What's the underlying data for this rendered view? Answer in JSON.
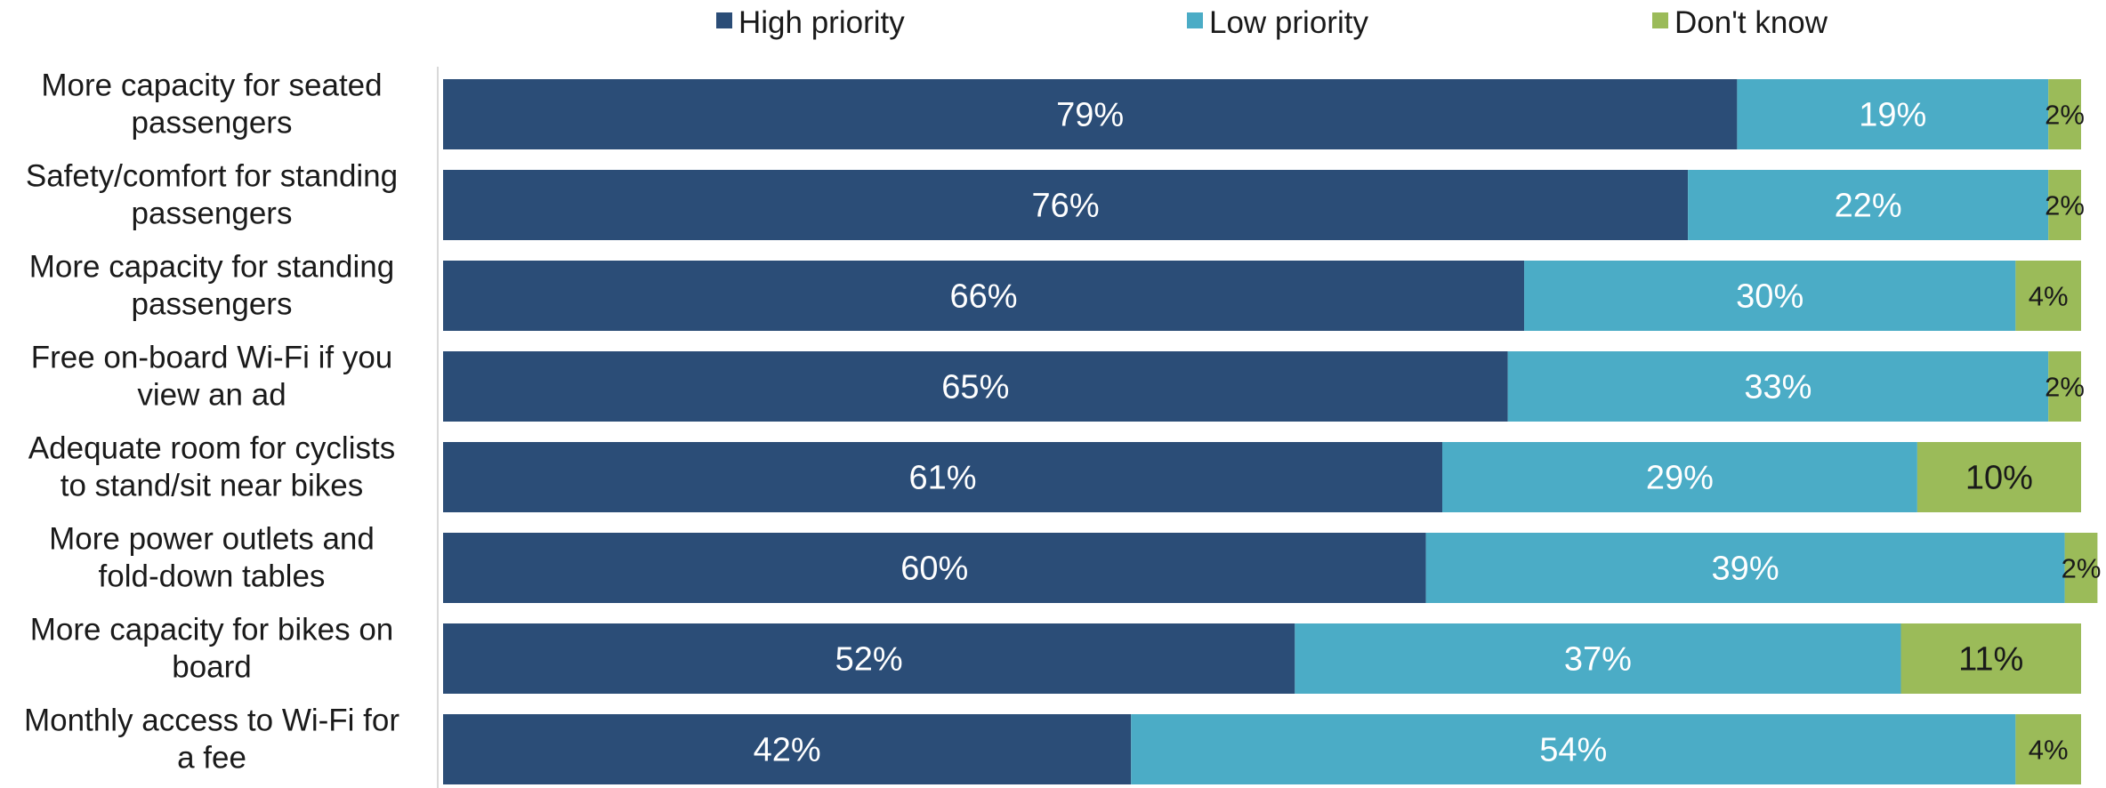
{
  "chart_data": {
    "type": "bar",
    "orientation": "horizontal",
    "stacked": true,
    "title": "",
    "xlabel": "",
    "ylabel": "",
    "xlim": [
      0,
      100
    ],
    "grid": false,
    "legend_position": "top",
    "categories": [
      [
        "More capacity for seated",
        "passengers"
      ],
      [
        "Safety/comfort for standing",
        "passengers"
      ],
      [
        "More capacity for standing",
        "passengers"
      ],
      [
        "Free on-board Wi-Fi if you",
        "view an ad"
      ],
      [
        "Adequate room for cyclists",
        "to stand/sit near bikes"
      ],
      [
        "More power outlets and",
        "fold-down tables"
      ],
      [
        "More capacity for bikes on",
        "board"
      ],
      [
        "Monthly access to Wi-Fi for",
        "a fee"
      ]
    ],
    "series": [
      {
        "name": "High priority",
        "color": "#2b4d77",
        "label_color": "#ffffff",
        "values": [
          79,
          76,
          66,
          65,
          61,
          60,
          52,
          42
        ]
      },
      {
        "name": "Low priority",
        "color": "#4bacc6",
        "label_color": "#ffffff",
        "values": [
          19,
          22,
          30,
          33,
          29,
          39,
          37,
          54
        ]
      },
      {
        "name": "Don't know",
        "color": "#9bbb59",
        "label_color": "#1a1a1a",
        "values": [
          2,
          2,
          4,
          2,
          10,
          2,
          11,
          4
        ]
      }
    ],
    "value_suffix": "%"
  }
}
